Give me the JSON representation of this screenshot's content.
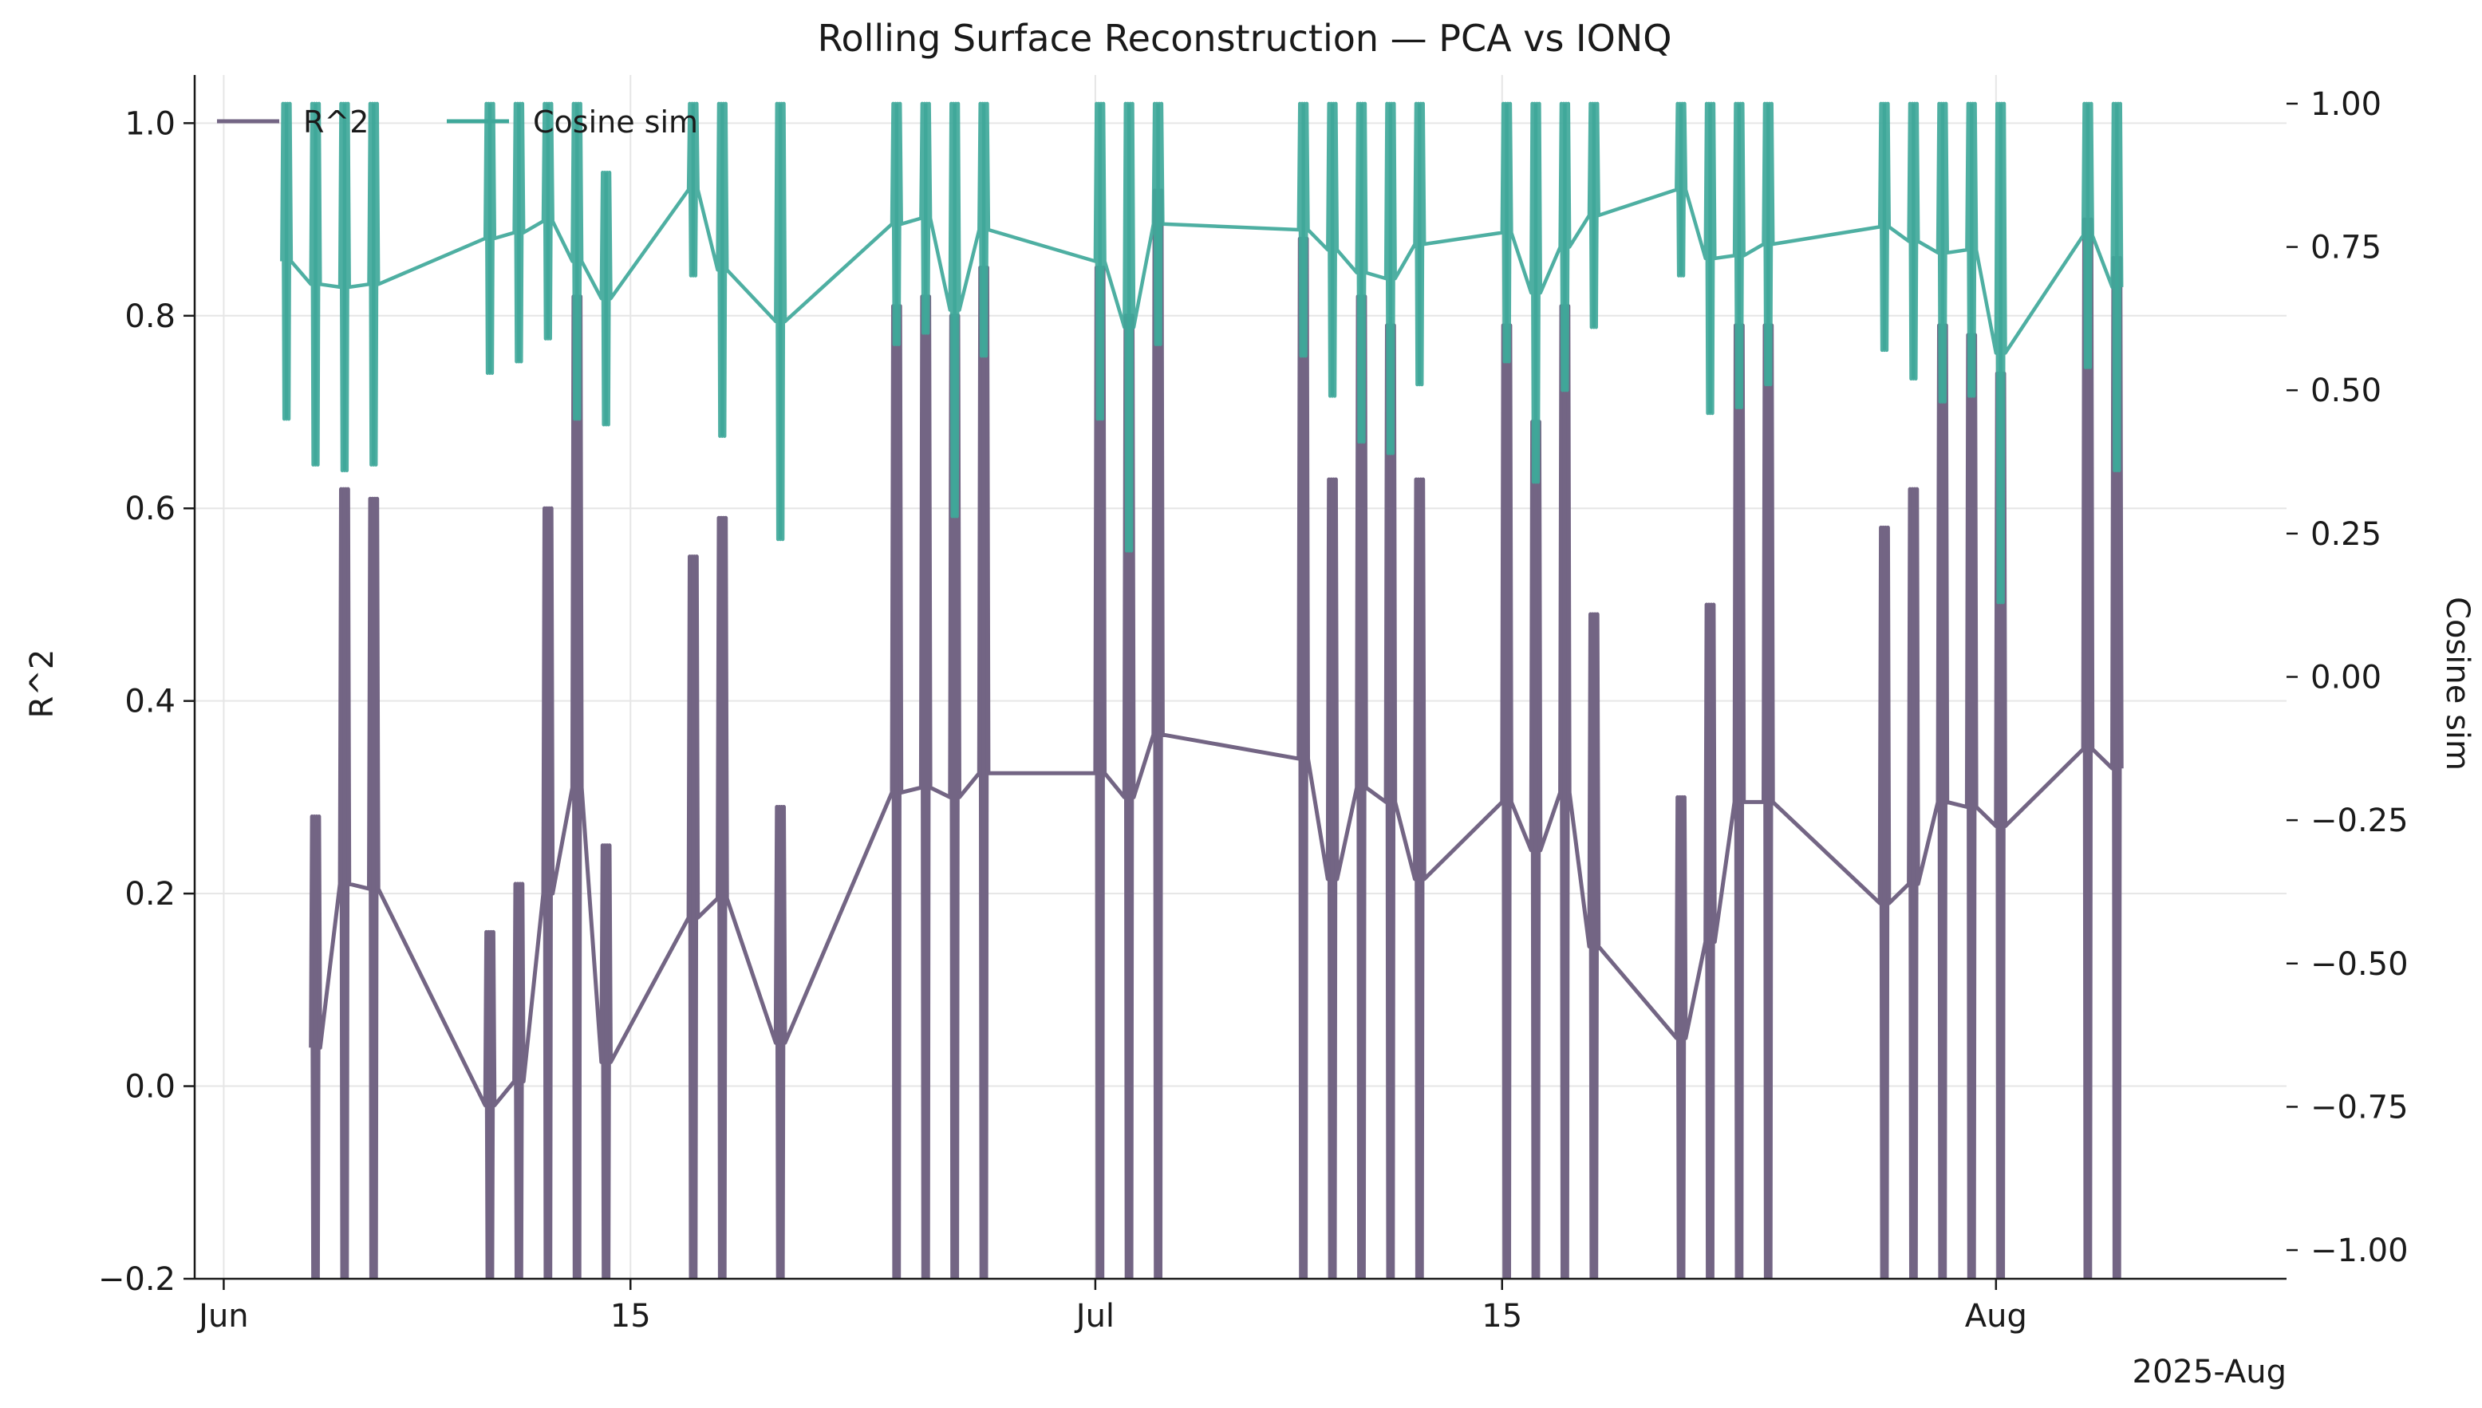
{
  "chart_data": {
    "type": "line",
    "title": "Rolling Surface Reconstruction — PCA vs IONQ",
    "x_axis": {
      "type": "date",
      "range": [
        "2025-05-31",
        "2025-08-11"
      ],
      "ticks": [
        {
          "date": "2025-06-01",
          "label": "Jun"
        },
        {
          "date": "2025-06-15",
          "label": "15"
        },
        {
          "date": "2025-07-01",
          "label": "Jul"
        },
        {
          "date": "2025-07-15",
          "label": "15"
        },
        {
          "date": "2025-08-01",
          "label": "Aug"
        }
      ],
      "offset_label": "2025-Aug"
    },
    "y_left": {
      "label": "R^2",
      "ylim": [
        -0.2,
        1.05
      ],
      "ticks": [
        -0.2,
        0.0,
        0.2,
        0.4,
        0.6,
        0.8,
        1.0
      ],
      "tick_labels": [
        "−0.2",
        "0.0",
        "0.2",
        "0.4",
        "0.6",
        "0.8",
        "1.0"
      ]
    },
    "y_right": {
      "label": "Cosine sim",
      "ylim": [
        -1.05,
        1.05
      ],
      "ticks": [
        -1.0,
        -0.75,
        -0.5,
        -0.25,
        0.0,
        0.25,
        0.5,
        0.75,
        1.0
      ],
      "tick_labels": [
        "−1.00",
        "−0.75",
        "−0.50",
        "−0.25",
        "0.00",
        "0.25",
        "0.50",
        "0.75",
        "1.00"
      ]
    },
    "grid": true,
    "legend": {
      "placement": "top-left"
    },
    "series": [
      {
        "name": "R^2",
        "axis": "left",
        "color": "#736584",
        "sessions": [
          {
            "date": "2025-06-04",
            "low": -0.2,
            "high": 0.28
          },
          {
            "date": "2025-06-05",
            "low": -0.2,
            "high": 0.62
          },
          {
            "date": "2025-06-06",
            "low": -0.2,
            "high": 0.61
          },
          {
            "date": "2025-06-10",
            "low": -0.2,
            "high": 0.16
          },
          {
            "date": "2025-06-11",
            "low": -0.2,
            "high": 0.21
          },
          {
            "date": "2025-06-12",
            "low": -0.2,
            "high": 0.6
          },
          {
            "date": "2025-06-13",
            "low": -0.2,
            "high": 0.82
          },
          {
            "date": "2025-06-14",
            "low": -0.2,
            "high": 0.25
          },
          {
            "date": "2025-06-17",
            "low": -0.2,
            "high": 0.55
          },
          {
            "date": "2025-06-18",
            "low": -0.2,
            "high": 0.59
          },
          {
            "date": "2025-06-20",
            "low": -0.2,
            "high": 0.29
          },
          {
            "date": "2025-06-24",
            "low": -0.2,
            "high": 0.81
          },
          {
            "date": "2025-06-25",
            "low": -0.2,
            "high": 0.82
          },
          {
            "date": "2025-06-26",
            "low": -0.2,
            "high": 0.8
          },
          {
            "date": "2025-06-27",
            "low": -0.2,
            "high": 0.85
          },
          {
            "date": "2025-07-01",
            "low": -0.2,
            "high": 0.85
          },
          {
            "date": "2025-07-02",
            "low": -0.2,
            "high": 0.8
          },
          {
            "date": "2025-07-03",
            "low": -0.2,
            "high": 0.93
          },
          {
            "date": "2025-07-08",
            "low": -0.2,
            "high": 0.88
          },
          {
            "date": "2025-07-09",
            "low": -0.2,
            "high": 0.63
          },
          {
            "date": "2025-07-10",
            "low": -0.2,
            "high": 0.82
          },
          {
            "date": "2025-07-11",
            "low": -0.2,
            "high": 0.79
          },
          {
            "date": "2025-07-12",
            "low": -0.2,
            "high": 0.63
          },
          {
            "date": "2025-07-15",
            "low": -0.2,
            "high": 0.79
          },
          {
            "date": "2025-07-16",
            "low": -0.2,
            "high": 0.69
          },
          {
            "date": "2025-07-17",
            "low": -0.2,
            "high": 0.81
          },
          {
            "date": "2025-07-18",
            "low": -0.2,
            "high": 0.49
          },
          {
            "date": "2025-07-21",
            "low": -0.2,
            "high": 0.3
          },
          {
            "date": "2025-07-22",
            "low": -0.2,
            "high": 0.5
          },
          {
            "date": "2025-07-23",
            "low": -0.2,
            "high": 0.79
          },
          {
            "date": "2025-07-24",
            "low": -0.2,
            "high": 0.79
          },
          {
            "date": "2025-07-28",
            "low": -0.2,
            "high": 0.58
          },
          {
            "date": "2025-07-29",
            "low": -0.2,
            "high": 0.62
          },
          {
            "date": "2025-07-30",
            "low": -0.2,
            "high": 0.79
          },
          {
            "date": "2025-07-31",
            "low": -0.2,
            "high": 0.78
          },
          {
            "date": "2025-08-01",
            "low": -0.2,
            "high": 0.74
          },
          {
            "date": "2025-08-04",
            "low": -0.2,
            "high": 0.9
          },
          {
            "date": "2025-08-05",
            "low": -0.2,
            "high": 0.86
          }
        ]
      },
      {
        "name": "Cosine sim",
        "axis": "right",
        "color": "#3fa89a",
        "sessions": [
          {
            "date": "2025-06-03",
            "low": 0.45,
            "high": 1.0
          },
          {
            "date": "2025-06-04",
            "low": 0.37,
            "high": 1.0
          },
          {
            "date": "2025-06-05",
            "low": 0.36,
            "high": 1.0
          },
          {
            "date": "2025-06-06",
            "low": 0.37,
            "high": 1.0
          },
          {
            "date": "2025-06-10",
            "low": 0.53,
            "high": 1.0
          },
          {
            "date": "2025-06-11",
            "low": 0.55,
            "high": 1.0
          },
          {
            "date": "2025-06-12",
            "low": 0.59,
            "high": 1.0
          },
          {
            "date": "2025-06-13",
            "low": 0.45,
            "high": 1.0
          },
          {
            "date": "2025-06-14",
            "low": 0.44,
            "high": 0.88
          },
          {
            "date": "2025-06-17",
            "low": 0.7,
            "high": 1.0
          },
          {
            "date": "2025-06-18",
            "low": 0.42,
            "high": 1.0
          },
          {
            "date": "2025-06-20",
            "low": 0.24,
            "high": 1.0
          },
          {
            "date": "2025-06-24",
            "low": 0.58,
            "high": 1.0
          },
          {
            "date": "2025-06-25",
            "low": 0.6,
            "high": 1.0
          },
          {
            "date": "2025-06-26",
            "low": 0.28,
            "high": 1.0
          },
          {
            "date": "2025-06-27",
            "low": 0.56,
            "high": 1.0
          },
          {
            "date": "2025-07-01",
            "low": 0.45,
            "high": 1.0
          },
          {
            "date": "2025-07-02",
            "low": 0.22,
            "high": 1.0
          },
          {
            "date": "2025-07-03",
            "low": 0.58,
            "high": 1.0
          },
          {
            "date": "2025-07-08",
            "low": 0.56,
            "high": 1.0
          },
          {
            "date": "2025-07-09",
            "low": 0.49,
            "high": 1.0
          },
          {
            "date": "2025-07-10",
            "low": 0.41,
            "high": 1.0
          },
          {
            "date": "2025-07-11",
            "low": 0.39,
            "high": 1.0
          },
          {
            "date": "2025-07-12",
            "low": 0.51,
            "high": 1.0
          },
          {
            "date": "2025-07-15",
            "low": 0.55,
            "high": 1.0
          },
          {
            "date": "2025-07-16",
            "low": 0.34,
            "high": 1.0
          },
          {
            "date": "2025-07-17",
            "low": 0.5,
            "high": 1.0
          },
          {
            "date": "2025-07-18",
            "low": 0.61,
            "high": 1.0
          },
          {
            "date": "2025-07-21",
            "low": 0.7,
            "high": 1.0
          },
          {
            "date": "2025-07-22",
            "low": 0.46,
            "high": 1.0
          },
          {
            "date": "2025-07-23",
            "low": 0.47,
            "high": 1.0
          },
          {
            "date": "2025-07-24",
            "low": 0.51,
            "high": 1.0
          },
          {
            "date": "2025-07-28",
            "low": 0.57,
            "high": 1.0
          },
          {
            "date": "2025-07-29",
            "low": 0.52,
            "high": 1.0
          },
          {
            "date": "2025-07-30",
            "low": 0.48,
            "high": 1.0
          },
          {
            "date": "2025-07-31",
            "low": 0.49,
            "high": 1.0
          },
          {
            "date": "2025-08-01",
            "low": 0.13,
            "high": 1.0
          },
          {
            "date": "2025-08-04",
            "low": 0.54,
            "high": 1.0
          },
          {
            "date": "2025-08-05",
            "low": 0.36,
            "high": 1.0
          }
        ]
      }
    ]
  }
}
